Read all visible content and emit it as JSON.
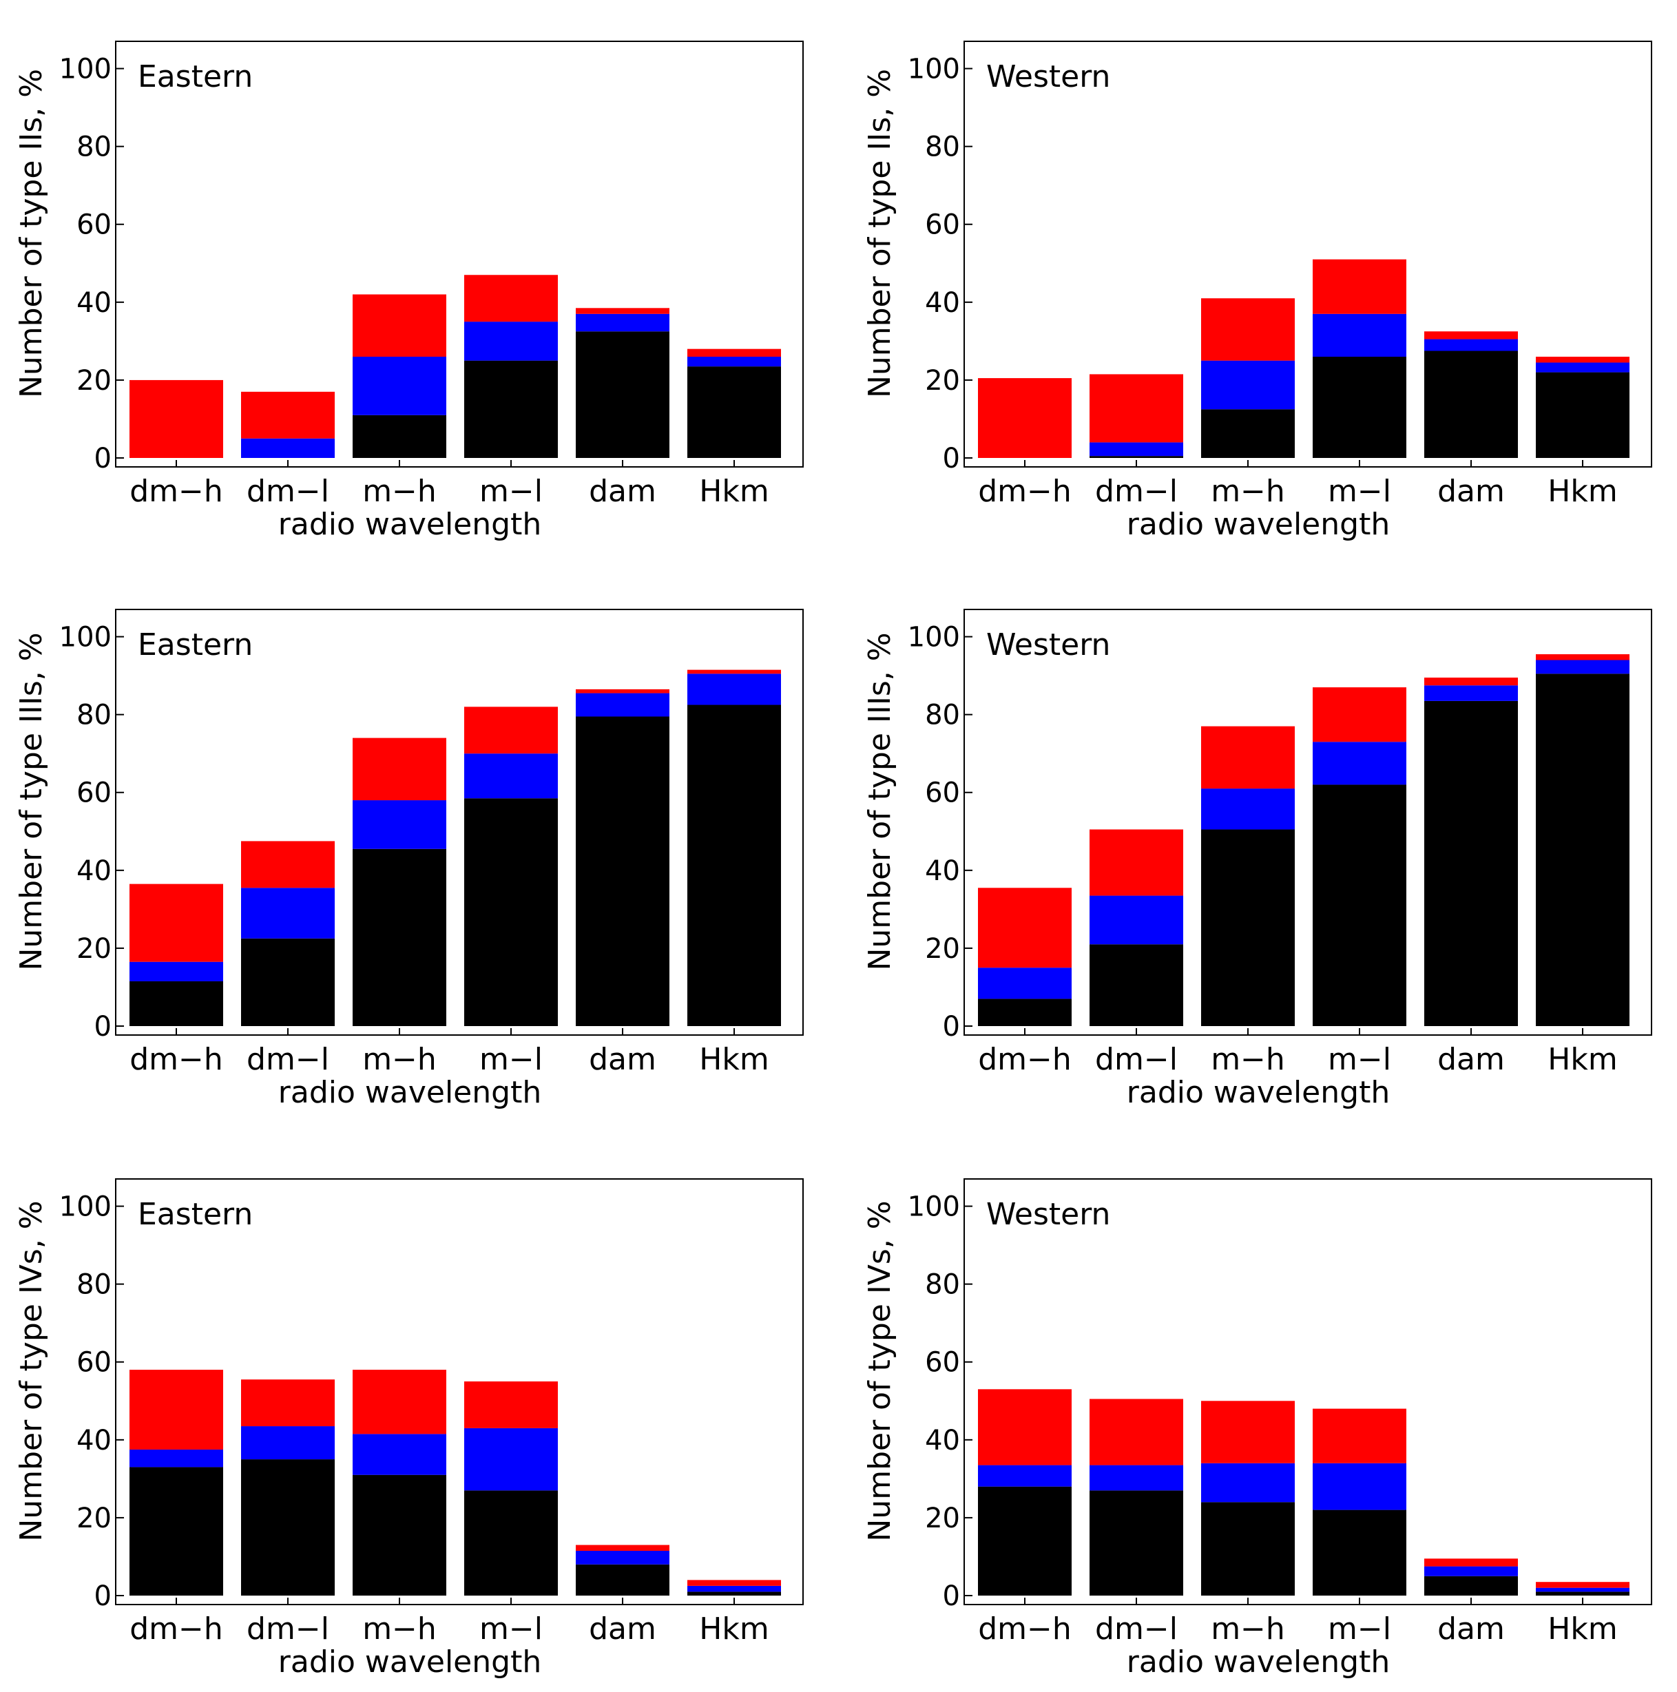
{
  "colors": {
    "black": "#000000",
    "blue": "#0000ff",
    "red": "#ff0000"
  },
  "chart_data": [
    {
      "type": "bar",
      "stacked": true,
      "title": "Eastern",
      "xlabel": "radio  wavelength",
      "ylabel": "Number  of  type  IIs,  %",
      "ylim": [
        0,
        107
      ],
      "yticks": [
        "0",
        "20",
        "40",
        "60",
        "80",
        "100"
      ],
      "categories": [
        "dm−h",
        "dm−l",
        "m−h",
        "m−l",
        "dam",
        "Hkm"
      ],
      "series": [
        {
          "name": "black",
          "values": [
            0,
            0,
            11,
            25,
            32.5,
            23.5
          ]
        },
        {
          "name": "blue",
          "values": [
            0,
            5,
            15,
            10,
            4.5,
            2.5
          ]
        },
        {
          "name": "red",
          "values": [
            20,
            12,
            16,
            12,
            1.5,
            2
          ]
        }
      ]
    },
    {
      "type": "bar",
      "stacked": true,
      "title": "Western",
      "xlabel": "radio  wavelength",
      "ylabel": "Number  of  type  IIs,  %",
      "ylim": [
        0,
        107
      ],
      "yticks": [
        "0",
        "20",
        "40",
        "60",
        "80",
        "100"
      ],
      "categories": [
        "dm−h",
        "dm−l",
        "m−h",
        "m−l",
        "dam",
        "Hkm"
      ],
      "series": [
        {
          "name": "black",
          "values": [
            0,
            0.5,
            12.5,
            26,
            27.5,
            22
          ]
        },
        {
          "name": "blue",
          "values": [
            0,
            3.5,
            12.5,
            11,
            3,
            2.5
          ]
        },
        {
          "name": "red",
          "values": [
            20.5,
            17.5,
            16,
            14,
            2,
            1.5
          ]
        }
      ]
    },
    {
      "type": "bar",
      "stacked": true,
      "title": "Eastern",
      "xlabel": "radio  wavelength",
      "ylabel": "Number  of  type  IIIs,  %",
      "ylim": [
        0,
        107
      ],
      "yticks": [
        "0",
        "20",
        "40",
        "60",
        "80",
        "100"
      ],
      "categories": [
        "dm−h",
        "dm−l",
        "m−h",
        "m−l",
        "dam",
        "Hkm"
      ],
      "series": [
        {
          "name": "black",
          "values": [
            11.5,
            22.5,
            45.5,
            58.5,
            79.5,
            82.5
          ]
        },
        {
          "name": "blue",
          "values": [
            5,
            13,
            12.5,
            11.5,
            6,
            8
          ]
        },
        {
          "name": "red",
          "values": [
            20,
            12,
            16,
            12,
            1,
            1
          ]
        }
      ]
    },
    {
      "type": "bar",
      "stacked": true,
      "title": "Western",
      "xlabel": "radio  wavelength",
      "ylabel": "Number  of  type  IIIs,  %",
      "ylim": [
        0,
        107
      ],
      "yticks": [
        "0",
        "20",
        "40",
        "60",
        "80",
        "100"
      ],
      "categories": [
        "dm−h",
        "dm−l",
        "m−h",
        "m−l",
        "dam",
        "Hkm"
      ],
      "series": [
        {
          "name": "black",
          "values": [
            7,
            21,
            50.5,
            62,
            83.5,
            90.5
          ]
        },
        {
          "name": "blue",
          "values": [
            8,
            12.5,
            10.5,
            11,
            4,
            3.5
          ]
        },
        {
          "name": "red",
          "values": [
            20.5,
            17,
            16,
            14,
            2,
            1.5
          ]
        }
      ]
    },
    {
      "type": "bar",
      "stacked": true,
      "title": "Eastern",
      "xlabel": "radio  wavelength",
      "ylabel": "Number  of  type  IVs,  %",
      "ylim": [
        0,
        107
      ],
      "yticks": [
        "0",
        "20",
        "40",
        "60",
        "80",
        "100"
      ],
      "categories": [
        "dm−h",
        "dm−l",
        "m−h",
        "m−l",
        "dam",
        "Hkm"
      ],
      "series": [
        {
          "name": "black",
          "values": [
            33,
            35,
            31,
            27,
            8,
            1
          ]
        },
        {
          "name": "blue",
          "values": [
            4.5,
            8.5,
            10.5,
            16,
            3.5,
            1.5
          ]
        },
        {
          "name": "red",
          "values": [
            20.5,
            12,
            16.5,
            12,
            1.5,
            1.5
          ]
        }
      ]
    },
    {
      "type": "bar",
      "stacked": true,
      "title": "Western",
      "xlabel": "radio  wavelength",
      "ylabel": "Number  of  type  IVs,  %",
      "ylim": [
        0,
        107
      ],
      "yticks": [
        "0",
        "20",
        "40",
        "60",
        "80",
        "100"
      ],
      "categories": [
        "dm−h",
        "dm−l",
        "m−h",
        "m−l",
        "dam",
        "Hkm"
      ],
      "series": [
        {
          "name": "black",
          "values": [
            28,
            27,
            24,
            22,
            5,
            1
          ]
        },
        {
          "name": "blue",
          "values": [
            5.5,
            6.5,
            10,
            12,
            2.5,
            1
          ]
        },
        {
          "name": "red",
          "values": [
            19.5,
            17,
            16,
            14,
            2,
            1.5
          ]
        }
      ]
    }
  ]
}
